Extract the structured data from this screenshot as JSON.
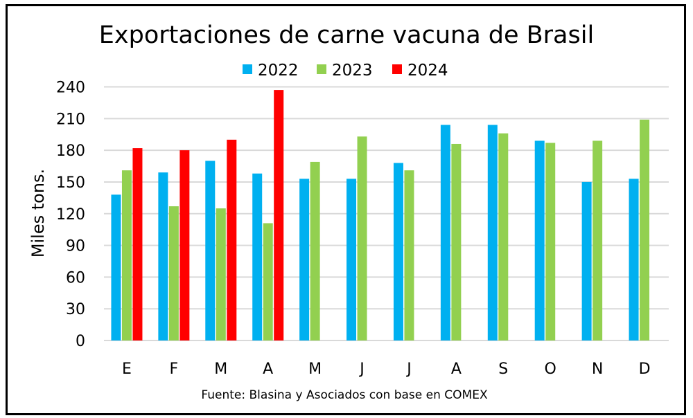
{
  "chart_data": {
    "type": "bar",
    "title": "Exportaciones de carne vacuna de Brasil",
    "xlabel": "",
    "ylabel": "Miles tons.",
    "ylim": [
      0,
      240
    ],
    "yticks": [
      0,
      30,
      60,
      90,
      120,
      150,
      180,
      210,
      240
    ],
    "grid": true,
    "legend_position": "top-center",
    "categories": [
      "E",
      "F",
      "M",
      "A",
      "M",
      "J",
      "J",
      "A",
      "S",
      "O",
      "N",
      "D"
    ],
    "series": [
      {
        "name": "2022",
        "color": "#00B0F0",
        "values": [
          138,
          159,
          170,
          158,
          153,
          153,
          168,
          204,
          204,
          189,
          150,
          153
        ]
      },
      {
        "name": "2023",
        "color": "#92D050",
        "values": [
          161,
          127,
          125,
          111,
          169,
          193,
          161,
          186,
          196,
          187,
          189,
          209
        ]
      },
      {
        "name": "2024",
        "color": "#FF0000",
        "values": [
          182,
          180,
          190,
          237,
          null,
          null,
          null,
          null,
          null,
          null,
          null,
          null
        ]
      }
    ],
    "source": "Fuente: Blasina y Asociados con base en COMEX"
  }
}
